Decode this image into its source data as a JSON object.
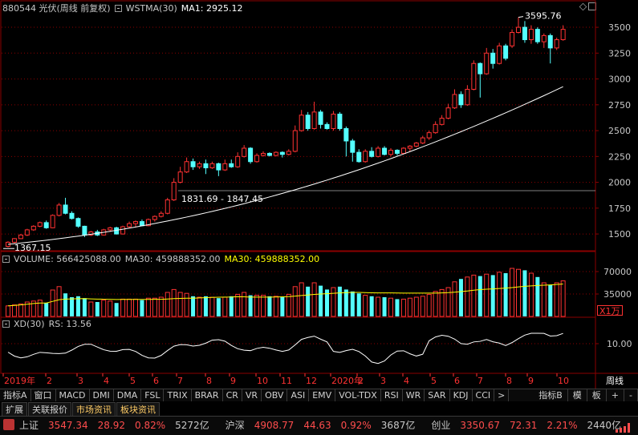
{
  "header": {
    "code_name": "880544 光伏(周线 前复权)",
    "indicator": "WSTMA(30)",
    "ma_label": "MA1: 2925.12"
  },
  "volume_header": {
    "label": "VOLUME: 566425088.00",
    "ma_label": "MA30: 459888352.00",
    "ma_label2": "MA30: 459888352.00"
  },
  "rs_header": {
    "label": "XD(30)",
    "value": "RS: 13.56"
  },
  "price_axis": [
    "3500",
    "3250",
    "3000",
    "2750",
    "2500",
    "2250",
    "2000",
    "1750",
    "1500"
  ],
  "volume_axis": [
    "70000",
    "35000"
  ],
  "volume_unit": "X1万",
  "rs_axis": [
    "10.00"
  ],
  "annotations": {
    "high": "3595.76",
    "low": "1367.15",
    "range": "1831.69 - 1847.45"
  },
  "time_axis": {
    "labels": [
      "2019年",
      "2",
      "3",
      "4",
      "5",
      "6",
      "7",
      "8",
      "9",
      "10",
      "11",
      "12",
      "2020年",
      "2",
      "3",
      "4",
      "5",
      "6",
      "7",
      "8",
      "9",
      "10"
    ],
    "period": "周线"
  },
  "indicator_tabs": [
    "指标A",
    "窗口",
    "MACD",
    "DMI",
    "DMA",
    "FSL",
    "TRIX",
    "BRAR",
    "CR",
    "VR",
    "OBV",
    "ASI",
    "EMV",
    "VOL-TDX",
    "RSI",
    "WR",
    "SAR",
    "KDJ",
    "CCI",
    ">"
  ],
  "right_tabs": [
    "指标B",
    "模",
    "板",
    "+",
    "-"
  ],
  "bottom_tabs": [
    "扩展",
    "关联报价",
    "市场资讯",
    "板块资讯"
  ],
  "ticker": [
    {
      "name": "上证",
      "price": "3547.34",
      "chg": "28.92",
      "pct": "0.82%",
      "amt": "5272亿"
    },
    {
      "name": "沪深",
      "price": "4908.77",
      "chg": "44.63",
      "pct": "0.92%",
      "amt": "3687亿"
    },
    {
      "name": "创业",
      "price": "3350.67",
      "chg": "72.31",
      "pct": "2.21%",
      "amt": "2440亿"
    }
  ],
  "colors": {
    "up": "#ff3232",
    "down": "#54ffff",
    "ma_line": "#ffffff",
    "vol_ma": "#ffff00",
    "grid": "#8b0000",
    "axis_text": "#c8c8c8"
  },
  "chart_data": {
    "type": "candlestick",
    "price_ylim": [
      1330,
      3640
    ],
    "volume_ylim": [
      0,
      80000
    ],
    "volume_unit": "万",
    "candles": [
      [
        1380,
        1420,
        1370,
        1430,
        0.22
      ],
      [
        1420,
        1455,
        1410,
        1460,
        0.24
      ],
      [
        1455,
        1490,
        1450,
        1500,
        0.26
      ],
      [
        1490,
        1540,
        1480,
        1550,
        0.3
      ],
      [
        1540,
        1575,
        1530,
        1585,
        0.32
      ],
      [
        1575,
        1610,
        1565,
        1620,
        0.34
      ],
      [
        1610,
        1560,
        1550,
        1630,
        0.28
      ],
      [
        1560,
        1680,
        1555,
        1690,
        0.55
      ],
      [
        1680,
        1780,
        1670,
        1800,
        0.62
      ],
      [
        1780,
        1700,
        1690,
        1850,
        0.48
      ],
      [
        1700,
        1650,
        1640,
        1720,
        0.4
      ],
      [
        1650,
        1575,
        1560,
        1660,
        0.42
      ],
      [
        1575,
        1490,
        1470,
        1580,
        0.38
      ],
      [
        1490,
        1520,
        1480,
        1530,
        0.3
      ],
      [
        1520,
        1490,
        1480,
        1540,
        0.3
      ],
      [
        1490,
        1540,
        1485,
        1550,
        0.34
      ],
      [
        1540,
        1560,
        1520,
        1570,
        0.32
      ],
      [
        1560,
        1500,
        1495,
        1570,
        0.28
      ],
      [
        1500,
        1570,
        1495,
        1580,
        0.36
      ],
      [
        1570,
        1600,
        1560,
        1620,
        0.36
      ],
      [
        1600,
        1620,
        1570,
        1630,
        0.36
      ],
      [
        1620,
        1580,
        1575,
        1640,
        0.34
      ],
      [
        1580,
        1640,
        1575,
        1650,
        0.38
      ],
      [
        1640,
        1670,
        1620,
        1680,
        0.38
      ],
      [
        1670,
        1700,
        1660,
        1720,
        0.4
      ],
      [
        1700,
        1830,
        1690,
        1850,
        0.5
      ],
      [
        1830,
        2000,
        1820,
        2040,
        0.56
      ],
      [
        2000,
        2100,
        1990,
        2150,
        0.5
      ],
      [
        2100,
        2200,
        2090,
        2240,
        0.48
      ],
      [
        2200,
        2150,
        2120,
        2230,
        0.42
      ],
      [
        2150,
        2180,
        2130,
        2200,
        0.4
      ],
      [
        2180,
        2140,
        2080,
        2220,
        0.42
      ],
      [
        2140,
        2180,
        2130,
        2200,
        0.4
      ],
      [
        2180,
        2120,
        2060,
        2190,
        0.38
      ],
      [
        2120,
        2180,
        2110,
        2220,
        0.4
      ],
      [
        2180,
        2150,
        2140,
        2220,
        0.42
      ],
      [
        2150,
        2250,
        2140,
        2290,
        0.46
      ],
      [
        2250,
        2330,
        2240,
        2360,
        0.5
      ],
      [
        2330,
        2200,
        2180,
        2340,
        0.44
      ],
      [
        2200,
        2260,
        2190,
        2280,
        0.44
      ],
      [
        2260,
        2280,
        2250,
        2300,
        0.44
      ],
      [
        2280,
        2260,
        2250,
        2290,
        0.42
      ],
      [
        2260,
        2290,
        2250,
        2300,
        0.42
      ],
      [
        2290,
        2270,
        2240,
        2300,
        0.4
      ],
      [
        2270,
        2300,
        2260,
        2320,
        0.46
      ],
      [
        2300,
        2500,
        2290,
        2550,
        0.62
      ],
      [
        2500,
        2650,
        2490,
        2700,
        0.7
      ],
      [
        2650,
        2520,
        2500,
        2680,
        0.62
      ],
      [
        2520,
        2680,
        2510,
        2780,
        0.7
      ],
      [
        2680,
        2560,
        2520,
        2700,
        0.64
      ],
      [
        2560,
        2520,
        2510,
        2580,
        0.56
      ],
      [
        2520,
        2660,
        2500,
        2690,
        0.6
      ],
      [
        2660,
        2520,
        2500,
        2680,
        0.62
      ],
      [
        2520,
        2400,
        2250,
        2540,
        0.56
      ],
      [
        2400,
        2290,
        2200,
        2420,
        0.52
      ],
      [
        2290,
        2200,
        2190,
        2320,
        0.48
      ],
      [
        2200,
        2300,
        2190,
        2320,
        0.44
      ],
      [
        2300,
        2250,
        2240,
        2340,
        0.42
      ],
      [
        2250,
        2330,
        2240,
        2350,
        0.4
      ],
      [
        2330,
        2270,
        2260,
        2350,
        0.4
      ],
      [
        2270,
        2310,
        2250,
        2330,
        0.38
      ],
      [
        2310,
        2280,
        2260,
        2320,
        0.36
      ],
      [
        2280,
        2330,
        2270,
        2340,
        0.36
      ],
      [
        2330,
        2350,
        2300,
        2360,
        0.38
      ],
      [
        2350,
        2380,
        2340,
        2390,
        0.4
      ],
      [
        2380,
        2430,
        2370,
        2450,
        0.42
      ],
      [
        2430,
        2480,
        2410,
        2500,
        0.46
      ],
      [
        2480,
        2560,
        2470,
        2590,
        0.52
      ],
      [
        2560,
        2620,
        2550,
        2650,
        0.56
      ],
      [
        2620,
        2720,
        2610,
        2760,
        0.6
      ],
      [
        2720,
        2850,
        2710,
        2900,
        0.72
      ],
      [
        2850,
        2750,
        2720,
        2880,
        0.78
      ],
      [
        2750,
        2900,
        2740,
        2940,
        0.82
      ],
      [
        2900,
        3150,
        2890,
        3180,
        0.86
      ],
      [
        3150,
        3050,
        2820,
        3160,
        0.84
      ],
      [
        3050,
        3250,
        3040,
        3300,
        0.88
      ],
      [
        3250,
        3150,
        3100,
        3290,
        0.86
      ],
      [
        3150,
        3320,
        3140,
        3350,
        0.92
      ],
      [
        3320,
        3200,
        3180,
        3340,
        0.9
      ],
      [
        3320,
        3450,
        3300,
        3480,
        1.0
      ],
      [
        3450,
        3500,
        3440,
        3596,
        0.98
      ],
      [
        3500,
        3380,
        3350,
        3560,
        0.96
      ],
      [
        3380,
        3480,
        3340,
        3520,
        0.9
      ],
      [
        3480,
        3360,
        3340,
        3500,
        0.82
      ],
      [
        3360,
        3420,
        3300,
        3440,
        0.7
      ],
      [
        3420,
        3300,
        3150,
        3440,
        0.66
      ],
      [
        3300,
        3380,
        3280,
        3400,
        0.7
      ],
      [
        3380,
        3480,
        3370,
        3520,
        0.74
      ]
    ],
    "wstma_start": 1400,
    "wstma_end": 2925.12
  }
}
